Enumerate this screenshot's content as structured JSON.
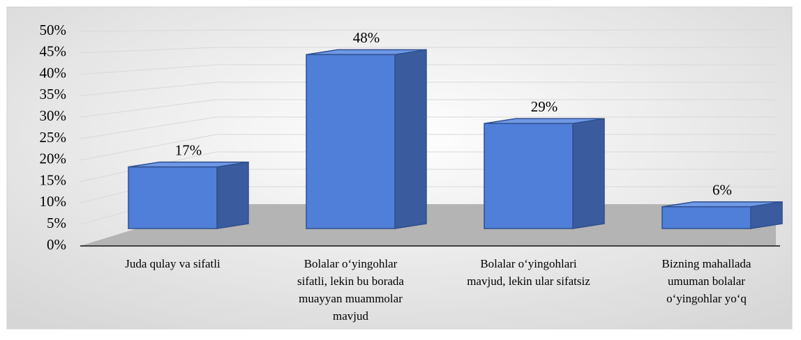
{
  "chart_data": {
    "type": "bar3d",
    "categories": [
      [
        "Juda qulay va sifatli"
      ],
      [
        "Bolalar o‘yingohlar",
        "sifatli, lekin bu borada",
        "muayyan muammolar",
        "mavjud"
      ],
      [
        "Bolalar o‘yingohlari",
        "mavjud, lekin ular sifatsiz"
      ],
      [
        "Bizning mahallada",
        "umuman bolalar",
        "o‘yingohlar  yo‘q"
      ]
    ],
    "values": [
      17,
      48,
      29,
      6
    ],
    "value_labels": [
      "17%",
      "48%",
      "29%",
      "6%"
    ],
    "color": "#4f7fd8",
    "ylim": [
      0,
      50
    ],
    "yticks": [
      {
        "value": 0,
        "label": "0%"
      },
      {
        "value": 5,
        "label": "5%"
      },
      {
        "value": 10,
        "label": "10%"
      },
      {
        "value": 15,
        "label": "15%"
      },
      {
        "value": 20,
        "label": "20%"
      },
      {
        "value": 25,
        "label": "25%"
      },
      {
        "value": 30,
        "label": "30%"
      },
      {
        "value": 35,
        "label": "35%"
      },
      {
        "value": 40,
        "label": "40%"
      },
      {
        "value": 45,
        "label": "45%"
      },
      {
        "value": 50,
        "label": "50%"
      }
    ],
    "grid": true
  }
}
